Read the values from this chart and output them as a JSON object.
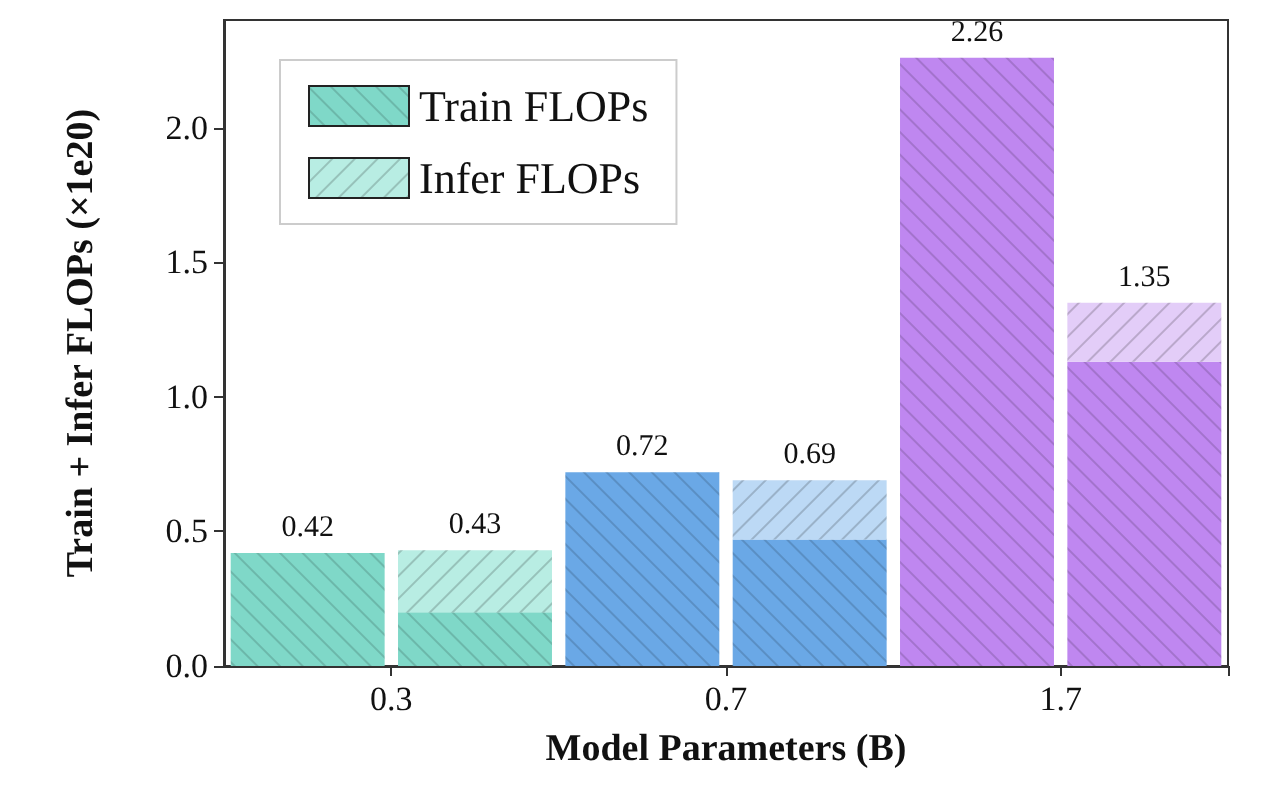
{
  "chart_data": {
    "type": "bar",
    "xlabel": "Model Parameters (B)",
    "ylabel": "Train + Infer FLOPs (×1e20)",
    "categories": [
      "0.3",
      null,
      "0.7",
      null,
      "1.7",
      null
    ],
    "series": [
      {
        "name": "Train FLOPs",
        "colors": [
          "#7fd8c8",
          "#7fd8c8",
          "#6aa8e6",
          "#6aa8e6",
          "#bf87f0",
          "#bf87f0"
        ],
        "values": [
          0.42,
          0.2,
          0.72,
          0.47,
          2.26,
          1.13
        ]
      },
      {
        "name": "Infer FLOPs",
        "colors": [
          "#b8ede3",
          "#b8ede3",
          "#bcd9f5",
          "#bcd9f5",
          "#e3cdf8",
          "#e3cdf8"
        ],
        "values": [
          null,
          0.23,
          null,
          0.22,
          null,
          0.22
        ]
      }
    ],
    "stacked": true,
    "totals": [
      "0.42",
      "0.43",
      "0.72",
      "0.69",
      "2.26",
      "1.35"
    ],
    "ylim": [
      0,
      2.4
    ],
    "yticks": [
      {
        "value": 0,
        "label": "0.0"
      },
      {
        "value": 0.5,
        "label": "0.5"
      },
      {
        "value": 1,
        "label": "1.0"
      },
      {
        "value": 1.5,
        "label": "1.5"
      },
      {
        "value": 2,
        "label": "2.0"
      }
    ],
    "grid": false,
    "legend": "top left"
  }
}
